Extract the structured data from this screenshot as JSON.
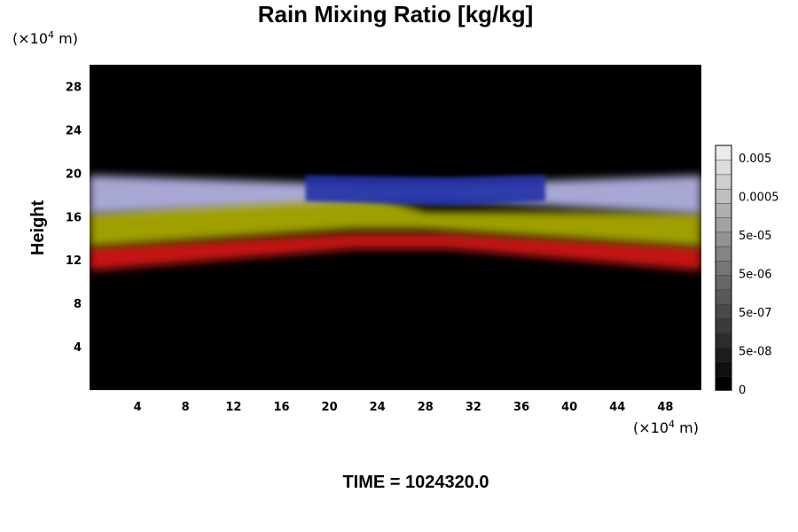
{
  "chart_data": {
    "type": "heatmap",
    "title": "Rain Mixing Ratio [kg/kg]",
    "ylabel": "Height",
    "x_unit": {
      "prefix": "(×10",
      "exponent": "4",
      "suffix": " m)"
    },
    "y_unit": {
      "prefix": "(×10",
      "exponent": "4",
      "suffix": " m)"
    },
    "xlim": [
      0,
      51
    ],
    "ylim": [
      0,
      30
    ],
    "x_ticks": [
      4,
      8,
      12,
      16,
      20,
      24,
      28,
      32,
      36,
      40,
      44,
      48
    ],
    "y_ticks": [
      4,
      8,
      12,
      16,
      20,
      24,
      28
    ],
    "time_label": "TIME = 1024320.0",
    "background_color": "#000000",
    "field_bands": [
      {
        "layer": "red",
        "color": "#d01818",
        "x": [
          0,
          22,
          30,
          51
        ],
        "bottom": [
          11.0,
          13.0,
          13.0,
          11.0
        ],
        "top": [
          13.2,
          14.5,
          14.5,
          13.2
        ]
      },
      {
        "layer": "yellow",
        "color": "#a8a800",
        "x": [
          0,
          22,
          28,
          51
        ],
        "bottom": [
          13.2,
          14.8,
          14.8,
          13.2
        ],
        "top": [
          16.4,
          18.5,
          16.5,
          16.4
        ]
      },
      {
        "layer": "lavender",
        "color": "#b0b0e0",
        "x": [
          0,
          22,
          30,
          51
        ],
        "bottom": [
          16.2,
          17.5,
          17.5,
          16.2
        ],
        "top": [
          19.8,
          19.0,
          19.0,
          19.8
        ]
      },
      {
        "layer": "blue",
        "color": "#2430a8",
        "x": [
          18,
          30,
          38
        ],
        "bottom": [
          17.4,
          17.0,
          17.4
        ],
        "top": [
          19.8,
          19.6,
          19.8
        ]
      }
    ],
    "colorbar": {
      "labels": [
        "0.005",
        "0.0005",
        "5e-05",
        "5e-06",
        "5e-07",
        "5e-08",
        "0"
      ],
      "levels": 17
    }
  }
}
